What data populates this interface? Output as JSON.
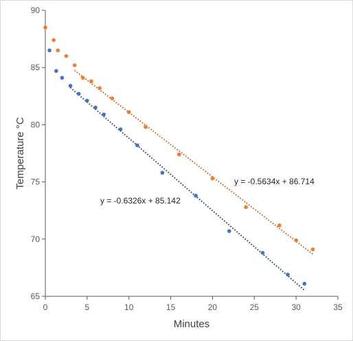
{
  "chart_data": {
    "type": "scatter",
    "xlabel": "Minutes",
    "ylabel": "Temperature °C",
    "xlim": [
      0,
      35
    ],
    "ylim": [
      65,
      90
    ],
    "x_ticks": [
      0,
      5,
      10,
      15,
      20,
      25,
      30,
      35
    ],
    "y_ticks": [
      65,
      70,
      75,
      80,
      85,
      90
    ],
    "grid": false,
    "legend": "none",
    "series": [
      {
        "color": "#ED7D31",
        "x": [
          0,
          1,
          1.5,
          2.5,
          3.5,
          4.5,
          5.5,
          6.5,
          8,
          10,
          12,
          16,
          20,
          24,
          28,
          30,
          32
        ],
        "y": [
          88.5,
          87.4,
          86.5,
          86.0,
          85.2,
          84.1,
          83.8,
          83.2,
          82.3,
          81.1,
          79.8,
          77.4,
          75.3,
          72.8,
          71.2,
          69.9,
          69.1
        ],
        "trendline": {
          "slope": -0.5634,
          "intercept": 86.714,
          "x_range": [
            3.5,
            32
          ],
          "color": "#C55A11",
          "equation": "y = -0.5634x + 86.714"
        }
      },
      {
        "color": "#4472C4",
        "x": [
          0.5,
          1.3,
          2,
          3,
          4,
          5,
          6,
          7,
          9,
          11,
          14,
          18,
          22,
          26,
          29,
          31
        ],
        "y": [
          86.5,
          84.7,
          84.1,
          83.4,
          82.7,
          82.1,
          81.5,
          80.9,
          79.6,
          78.2,
          75.8,
          73.8,
          70.7,
          68.8,
          66.9,
          66.1
        ],
        "trendline": {
          "slope": -0.6326,
          "intercept": 85.142,
          "x_range": [
            3,
            31
          ],
          "color": "#1F3864",
          "equation": "y = -0.6326x + 85.142"
        }
      }
    ]
  }
}
